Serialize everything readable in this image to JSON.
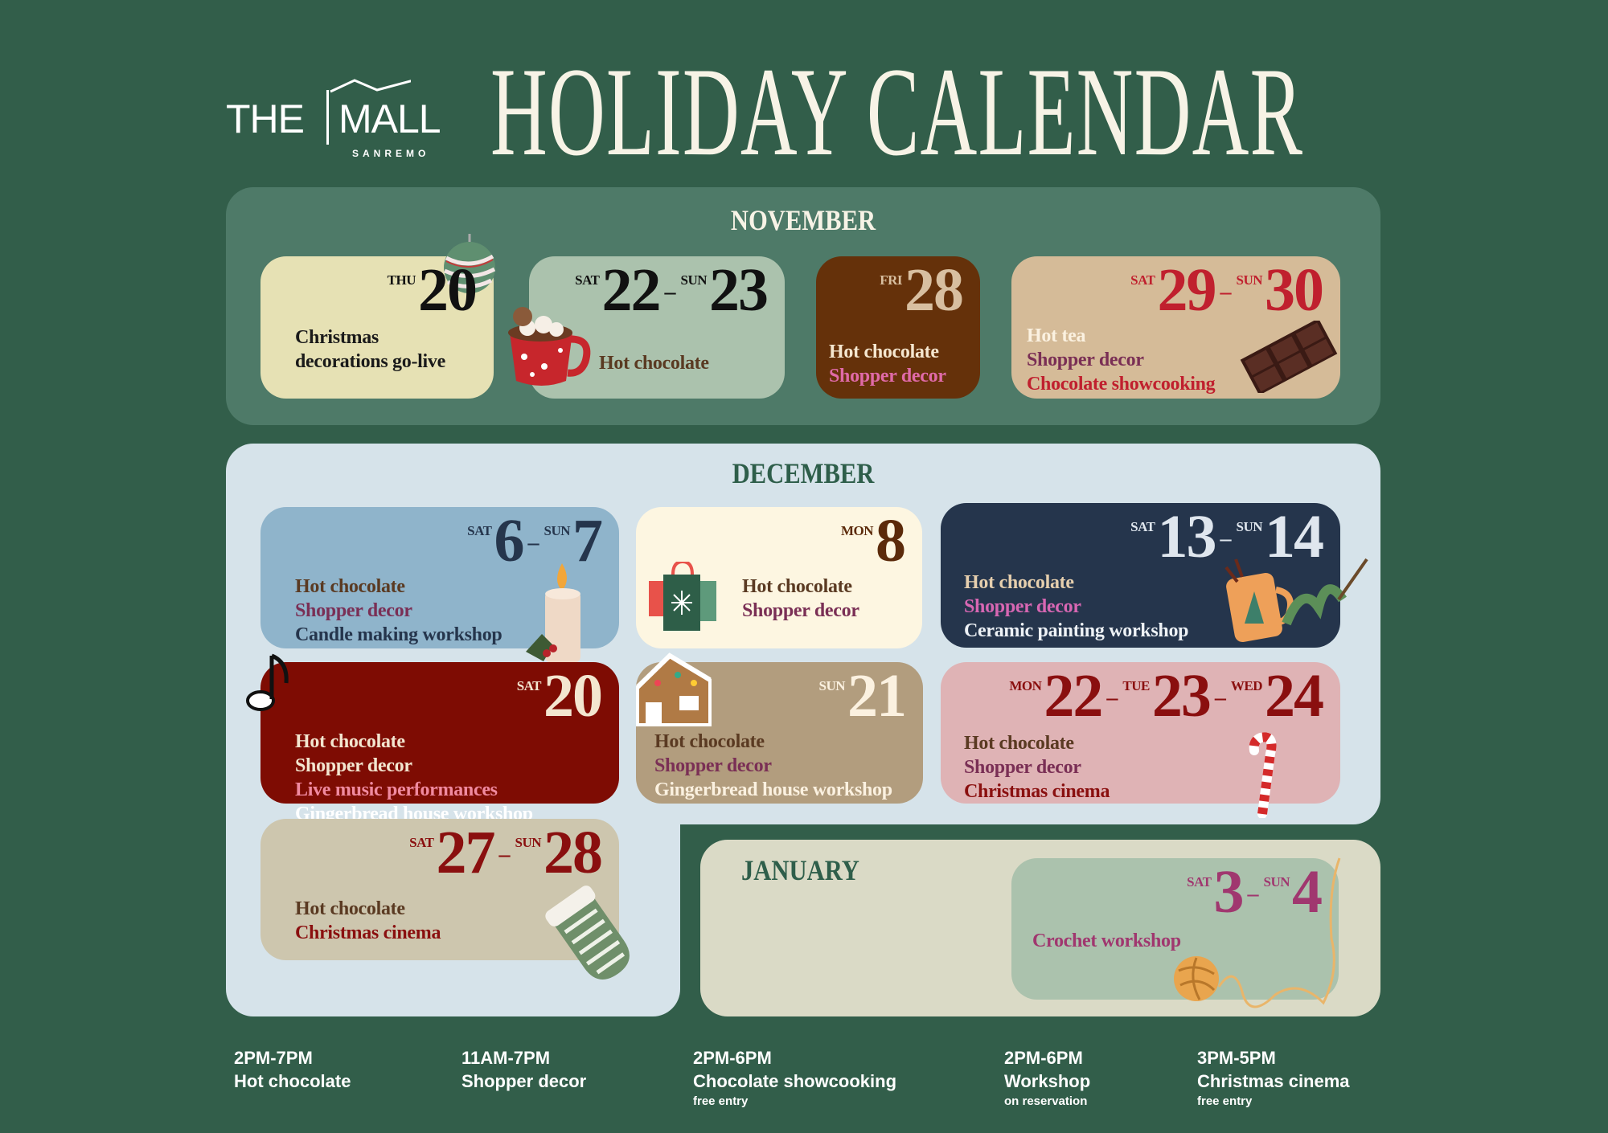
{
  "logo": {
    "the": "THE",
    "mall": "MALL",
    "subtitle": "SANREMO"
  },
  "title": "HOLIDAY CALENDAR",
  "colors": {
    "background": "#325e4a",
    "november_panel": "#4e7a68",
    "december_panel": "#d6e3ea",
    "january_panel": "#dadac6"
  },
  "months": [
    {
      "name": "NOVEMBER",
      "cards": [
        {
          "bg": "#e6e1b4",
          "date_color": "#111111",
          "dates": [
            {
              "day": "THU",
              "num": "20"
            }
          ],
          "lines": [
            {
              "text": "Christmas",
              "color": "#1a1a1a"
            },
            {
              "text": "decorations go-live",
              "color": "#1a1a1a"
            }
          ],
          "icon": "ornament-icon"
        },
        {
          "bg": "#abc2ad",
          "date_color": "#111111",
          "dates": [
            {
              "day": "SAT",
              "num": "22"
            },
            {
              "day": "SUN",
              "num": "23"
            }
          ],
          "lines": [
            {
              "text": "Hot chocolate",
              "color": "#5a3a22"
            }
          ],
          "icon": "hot-chocolate-mug-icon"
        },
        {
          "bg": "#65310a",
          "date_color": "#d8bfa0",
          "dates": [
            {
              "day": "FRI",
              "num": "28"
            }
          ],
          "lines": [
            {
              "text": "Hot chocolate",
              "color": "#f5e7d0"
            },
            {
              "text": "Shopper decor",
              "color": "#e06aa8"
            }
          ]
        },
        {
          "bg": "#d5bb98",
          "date_color": "#c0202e",
          "dates": [
            {
              "day": "SAT",
              "num": "29"
            },
            {
              "day": "SUN",
              "num": "30"
            }
          ],
          "lines": [
            {
              "text": "Hot tea",
              "color": "#fbf1e0"
            },
            {
              "text": "Shopper decor",
              "color": "#7a2f55"
            },
            {
              "text": "Chocolate showcooking",
              "color": "#c0202e"
            }
          ],
          "icon": "chocolate-bar-icon"
        }
      ]
    },
    {
      "name": "DECEMBER",
      "cards": [
        {
          "bg": "#8fb4cb",
          "date_color": "#25354c",
          "dates": [
            {
              "day": "SAT",
              "num": "6"
            },
            {
              "day": "SUN",
              "num": "7"
            }
          ],
          "lines": [
            {
              "text": "Hot chocolate",
              "color": "#5a3a22"
            },
            {
              "text": "Shopper decor",
              "color": "#7a2f55"
            },
            {
              "text": "Candle making workshop",
              "color": "#25354c"
            }
          ],
          "icon": "candle-icon"
        },
        {
          "bg": "#fdf6e1",
          "date_color": "#5b2a0a",
          "dates": [
            {
              "day": "MON",
              "num": "8"
            }
          ],
          "lines": [
            {
              "text": "Hot chocolate",
              "color": "#5a3a22"
            },
            {
              "text": "Shopper decor",
              "color": "#7a2f55"
            }
          ],
          "icon": "shopping-bags-icon"
        },
        {
          "bg": "#25354c",
          "date_color": "#dfe6ee",
          "dates": [
            {
              "day": "SAT",
              "num": "13"
            },
            {
              "day": "SUN",
              "num": "14"
            }
          ],
          "lines": [
            {
              "text": "Hot chocolate",
              "color": "#e6cfae"
            },
            {
              "text": "Shopper decor",
              "color": "#d867b3"
            },
            {
              "text": "Ceramic painting workshop",
              "color": "#eef2f6"
            }
          ],
          "icon": "painted-mug-icon"
        },
        {
          "bg": "#7e0c03",
          "date_color": "#f3e6d0",
          "dates": [
            {
              "day": "SAT",
              "num": "20"
            }
          ],
          "lines": [
            {
              "text": "Hot chocolate",
              "color": "#f3e6d0"
            },
            {
              "text": "Shopper decor",
              "color": "#f3e6d0"
            },
            {
              "text": "Live music performances",
              "color": "#f08aa0"
            },
            {
              "text": "Gingerbread house workshop",
              "color": "#ffffff"
            }
          ],
          "icon": "music-note-icon"
        },
        {
          "bg": "#b29d7e",
          "date_color": "#fbf1e0",
          "dates": [
            {
              "day": "SUN",
              "num": "21"
            }
          ],
          "lines": [
            {
              "text": "Hot chocolate",
              "color": "#5a3a22"
            },
            {
              "text": "Shopper decor",
              "color": "#7a2f55"
            },
            {
              "text": "Gingerbread house workshop",
              "color": "#fbf1e0"
            }
          ],
          "icon": "gingerbread-house-icon"
        },
        {
          "bg": "#dfb3b5",
          "date_color": "#8a0f0f",
          "dates": [
            {
              "day": "MON",
              "num": "22"
            },
            {
              "day": "TUE",
              "num": "23"
            },
            {
              "day": "WED",
              "num": "24"
            }
          ],
          "lines": [
            {
              "text": "Hot chocolate",
              "color": "#5a3a22"
            },
            {
              "text": "Shopper decor",
              "color": "#7a2f55"
            },
            {
              "text": "Christmas cinema",
              "color": "#8a0f0f"
            }
          ],
          "icon": "candy-cane-icon"
        },
        {
          "bg": "#cdc6ae",
          "date_color": "#8a0f0f",
          "dates": [
            {
              "day": "SAT",
              "num": "27"
            },
            {
              "day": "SUN",
              "num": "28"
            }
          ],
          "lines": [
            {
              "text": "Hot chocolate",
              "color": "#5a3a22"
            },
            {
              "text": "Christmas cinema",
              "color": "#8a0f0f"
            }
          ],
          "icon": "mitten-icon"
        }
      ]
    },
    {
      "name": "JANUARY",
      "cards": [
        {
          "bg": "#abc2ad",
          "date_color": "#a0376f",
          "dates": [
            {
              "day": "SAT",
              "num": "3"
            },
            {
              "day": "SUN",
              "num": "4"
            }
          ],
          "lines": [
            {
              "text": "Crochet workshop",
              "color": "#a0376f"
            }
          ],
          "icon": "yarn-ball-icon"
        }
      ]
    }
  ],
  "footer": [
    {
      "time": "2PM-7PM",
      "label": "Hot chocolate",
      "note": ""
    },
    {
      "time": "11AM-7PM",
      "label": "Shopper decor",
      "note": ""
    },
    {
      "time": "2PM-6PM",
      "label": "Chocolate showcooking",
      "note": "free entry"
    },
    {
      "time": "2PM-6PM",
      "label": "Workshop",
      "note": "on reservation"
    },
    {
      "time": "3PM-5PM",
      "label": "Christmas cinema",
      "note": "free entry"
    }
  ]
}
